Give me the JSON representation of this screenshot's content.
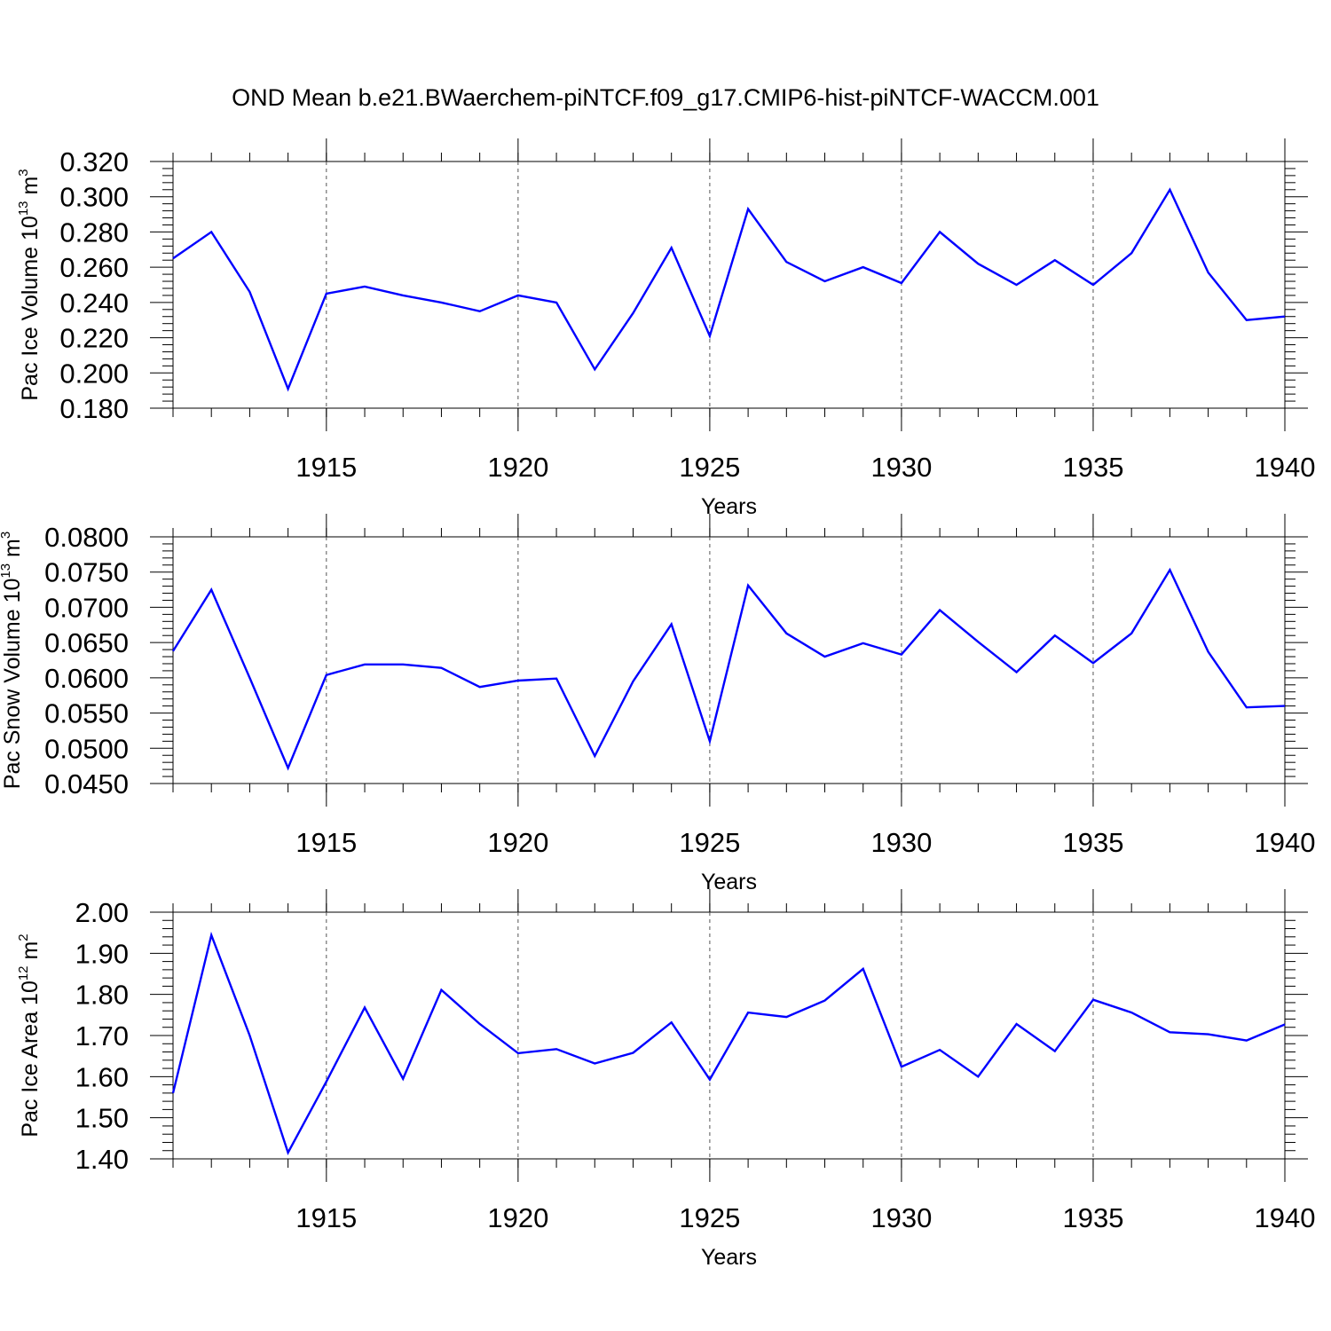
{
  "figure": {
    "title": "OND Mean b.e21.BWaerchem-piNTCF.f09_g17.CMIP6-hist-piNTCF-WACCM.001"
  },
  "chart_data": [
    {
      "type": "line",
      "title": "",
      "xlabel": "Years",
      "ylabel": {
        "text": "Pac Ice Volume 10",
        "exp": "13",
        "unit": " m",
        "unit_exp": "3"
      },
      "xlim": [
        1911,
        1940
      ],
      "ylim": [
        0.18,
        0.32
      ],
      "x_ticks": [
        1915,
        1920,
        1925,
        1930,
        1935,
        1940
      ],
      "y_ticks": [
        "0.180",
        "0.200",
        "0.220",
        "0.240",
        "0.260",
        "0.280",
        "0.300",
        "0.320"
      ],
      "grid": "vertical dashed at major x ticks",
      "line_color": "#0000ff",
      "x": [
        1911,
        1912,
        1913,
        1914,
        1915,
        1916,
        1917,
        1918,
        1919,
        1920,
        1921,
        1922,
        1923,
        1924,
        1925,
        1926,
        1927,
        1928,
        1929,
        1930,
        1931,
        1932,
        1933,
        1934,
        1935,
        1936,
        1937,
        1938,
        1939,
        1940
      ],
      "values": [
        0.265,
        0.28,
        0.246,
        0.191,
        0.245,
        0.249,
        0.244,
        0.24,
        0.235,
        0.244,
        0.24,
        0.202,
        0.234,
        0.271,
        0.221,
        0.293,
        0.263,
        0.252,
        0.26,
        0.251,
        0.28,
        0.262,
        0.25,
        0.264,
        0.25,
        0.268,
        0.304,
        0.257,
        0.23,
        0.232
      ]
    },
    {
      "type": "line",
      "title": "",
      "xlabel": "Years",
      "ylabel": {
        "text": "Pac Snow Volume 10",
        "exp": "13",
        "unit": " m",
        "unit_exp": "3"
      },
      "xlim": [
        1911,
        1940
      ],
      "ylim": [
        0.045,
        0.08
      ],
      "x_ticks": [
        1915,
        1920,
        1925,
        1930,
        1935,
        1940
      ],
      "y_ticks": [
        "0.0450",
        "0.0500",
        "0.0550",
        "0.0600",
        "0.0650",
        "0.0700",
        "0.0750",
        "0.0800"
      ],
      "grid": "vertical dashed at major x ticks",
      "line_color": "#0000ff",
      "x": [
        1911,
        1912,
        1913,
        1914,
        1915,
        1916,
        1917,
        1918,
        1919,
        1920,
        1921,
        1922,
        1923,
        1924,
        1925,
        1926,
        1927,
        1928,
        1929,
        1930,
        1931,
        1932,
        1933,
        1934,
        1935,
        1936,
        1937,
        1938,
        1939,
        1940
      ],
      "values": [
        0.0638,
        0.0725,
        0.06,
        0.0472,
        0.0604,
        0.0619,
        0.0619,
        0.0614,
        0.0587,
        0.0596,
        0.0599,
        0.0489,
        0.0595,
        0.0676,
        0.051,
        0.0731,
        0.0663,
        0.063,
        0.0649,
        0.0633,
        0.0696,
        0.0651,
        0.0608,
        0.066,
        0.0621,
        0.0663,
        0.0753,
        0.0637,
        0.0558,
        0.056
      ]
    },
    {
      "type": "line",
      "title": "",
      "xlabel": "Years",
      "ylabel": {
        "text": "Pac Ice Area 10",
        "exp": "12",
        "unit": " m",
        "unit_exp": "2"
      },
      "xlim": [
        1911,
        1940
      ],
      "ylim": [
        1.4,
        2.0
      ],
      "x_ticks": [
        1915,
        1920,
        1925,
        1930,
        1935,
        1940
      ],
      "y_ticks": [
        "1.40",
        "1.50",
        "1.60",
        "1.70",
        "1.80",
        "1.90",
        "2.00"
      ],
      "grid": "vertical dashed at major x ticks",
      "line_color": "#0000ff",
      "x": [
        1911,
        1912,
        1913,
        1914,
        1915,
        1916,
        1917,
        1918,
        1919,
        1920,
        1921,
        1922,
        1923,
        1924,
        1925,
        1926,
        1927,
        1928,
        1929,
        1930,
        1931,
        1932,
        1933,
        1934,
        1935,
        1936,
        1937,
        1938,
        1939,
        1940
      ],
      "values": [
        1.56,
        1.944,
        1.7,
        1.415,
        1.588,
        1.768,
        1.595,
        1.811,
        1.728,
        1.657,
        1.667,
        1.632,
        1.658,
        1.732,
        1.593,
        1.756,
        1.745,
        1.785,
        1.862,
        1.624,
        1.665,
        1.6,
        1.728,
        1.662,
        1.787,
        1.756,
        1.708,
        1.703,
        1.688,
        1.727
      ]
    }
  ]
}
